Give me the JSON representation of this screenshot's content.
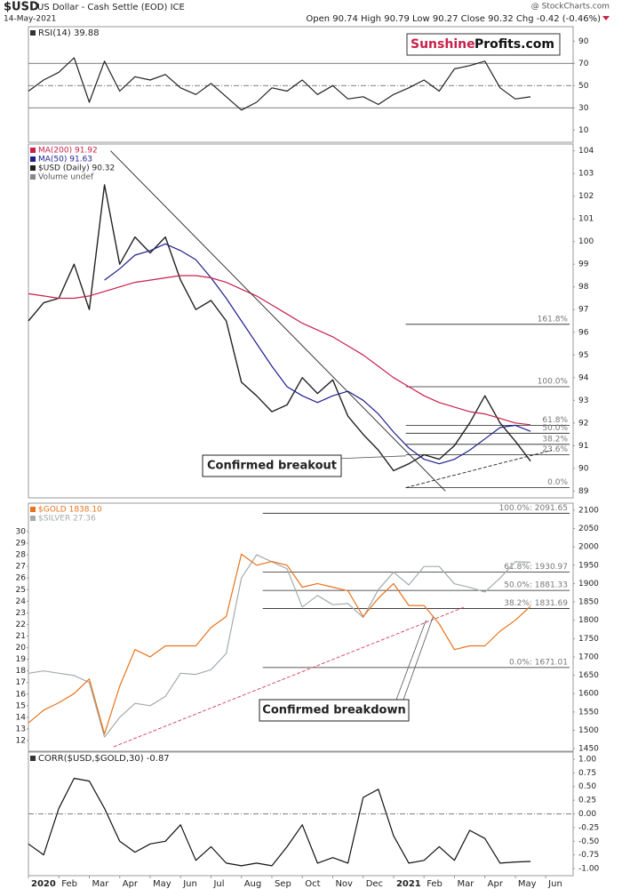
{
  "header": {
    "symbol": "$USD",
    "name": "US Dollar - Cash Settle (EOD) ICE",
    "date": "14-May-2021",
    "quote": "Open 90.74 High 90.79 Low 90.27 Close 90.32 Chg -0.42 (-0.46%)",
    "credit": "@ StockCharts.com"
  },
  "logo": {
    "part1": "Sunshine",
    "part2": "Profits.com"
  },
  "chart_data": [
    {
      "type": "line",
      "title": "RSI(14) 39.88",
      "xlim": [
        0,
        17.9
      ],
      "x": [
        0,
        0.5,
        1,
        1.5,
        2,
        2.5,
        3,
        3.5,
        4,
        4.5,
        5,
        5.5,
        6,
        6.5,
        7,
        7.5,
        8,
        8.5,
        9,
        9.5,
        10,
        10.5,
        11,
        11.5,
        12,
        12.5,
        13,
        13.5,
        14,
        14.5,
        15,
        15.5,
        16,
        16.5
      ],
      "ylim": [
        -1,
        103
      ],
      "yticks": [
        10,
        30,
        50,
        70,
        90
      ],
      "levels": [
        30,
        50,
        70
      ],
      "series": [
        {
          "color": "#222222",
          "values": [
            45,
            55,
            62,
            75,
            35,
            72,
            45,
            58,
            55,
            60,
            48,
            42,
            52,
            40,
            28,
            35,
            48,
            45,
            55,
            42,
            50,
            38,
            40,
            33,
            42,
            48,
            55,
            45,
            65,
            68,
            72,
            48,
            38,
            39.88
          ]
        }
      ]
    },
    {
      "type": "line",
      "xlim": [
        0,
        17.9
      ],
      "x": [
        0,
        0.5,
        1,
        1.5,
        2,
        2.5,
        3,
        3.5,
        4,
        4.5,
        5,
        5.5,
        6,
        6.5,
        7,
        7.5,
        8,
        8.5,
        9,
        9.5,
        10,
        10.5,
        11,
        11.5,
        12,
        12.5,
        13,
        13.5,
        14,
        14.5,
        15,
        15.5,
        16,
        16.5
      ],
      "ylim": [
        88.7,
        104.3
      ],
      "yticks": [
        89,
        90,
        91,
        92,
        93,
        94,
        95,
        96,
        97,
        98,
        99,
        100,
        101,
        102,
        103,
        104
      ],
      "legend_extra": "Volume undef",
      "series": [
        {
          "name": "$USD (Daily) 90.32",
          "color": "#222222",
          "values": [
            96.5,
            97.3,
            97.5,
            99.0,
            97.0,
            102.5,
            99.0,
            100.2,
            99.5,
            100.2,
            98.3,
            97.0,
            97.4,
            96.5,
            93.8,
            93.2,
            92.5,
            92.8,
            94.0,
            93.3,
            93.9,
            92.3,
            91.5,
            90.8,
            89.9,
            90.2,
            90.6,
            90.4,
            91.0,
            92.0,
            93.2,
            92.0,
            91.2,
            90.32
          ]
        },
        {
          "name": "MA(50) 91.63",
          "color": "#1f1f8f",
          "values": [
            null,
            null,
            null,
            null,
            null,
            98.3,
            98.8,
            99.4,
            99.6,
            99.9,
            99.6,
            99.2,
            98.4,
            97.5,
            96.5,
            95.5,
            94.5,
            93.6,
            93.2,
            92.9,
            93.2,
            93.4,
            93.0,
            92.4,
            91.6,
            90.9,
            90.4,
            90.2,
            90.4,
            90.8,
            91.3,
            91.8,
            91.9,
            91.63
          ]
        },
        {
          "name": "MA(200) 91.92",
          "color": "#c8204a",
          "values": [
            97.7,
            97.6,
            97.5,
            97.5,
            97.6,
            97.8,
            98.0,
            98.2,
            98.3,
            98.4,
            98.5,
            98.5,
            98.4,
            98.2,
            97.9,
            97.6,
            97.2,
            96.8,
            96.4,
            96.1,
            95.8,
            95.4,
            95.0,
            94.5,
            94.0,
            93.6,
            93.2,
            92.9,
            92.7,
            92.5,
            92.4,
            92.2,
            92.0,
            91.92
          ]
        }
      ],
      "fib_start": 12.4,
      "fib_levels": [
        {
          "label": "161.8%",
          "value": 96.35
        },
        {
          "label": "100.0%",
          "value": 93.6
        },
        {
          "label": "61.8%",
          "value": 91.9
        },
        {
          "label": "50.0%",
          "value": 91.55
        },
        {
          "label": "38.2%",
          "value": 91.06
        },
        {
          "label": "23.6%",
          "value": 90.6
        },
        {
          "label": "0.0%",
          "value": 89.15
        }
      ],
      "trendlines": [
        {
          "x": [
            2.7,
            13.7
          ],
          "y": [
            104.0,
            89.0
          ],
          "color": "#222222",
          "dash": false
        },
        {
          "x": [
            12.4,
            17.2
          ],
          "y": [
            89.15,
            90.8
          ],
          "color": "#222222",
          "dash": true
        }
      ],
      "annotation": {
        "text": "Confirmed breakout",
        "x": 12.4,
        "y": 90.55
      }
    },
    {
      "type": "line",
      "xlim": [
        0,
        17.9
      ],
      "x": [
        0,
        0.5,
        1,
        1.5,
        2,
        2.5,
        3,
        3.5,
        4,
        4.5,
        5,
        5.5,
        6,
        6.5,
        7,
        7.5,
        8,
        8.5,
        9,
        9.5,
        10,
        10.5,
        11,
        11.5,
        12,
        12.5,
        13,
        13.5,
        14,
        14.5,
        15,
        15.5,
        16,
        16.5
      ],
      "ylim": [
        11.08,
        32.45
      ],
      "yticks": [
        12,
        13,
        14,
        15,
        16,
        17,
        18,
        19,
        20,
        21,
        22,
        23,
        24,
        25,
        26,
        27,
        28,
        29,
        30
      ],
      "y_side": "left",
      "y2lim": [
        1443,
        2119
      ],
      "y2ticks": [
        1450,
        1500,
        1550,
        1600,
        1650,
        1700,
        1750,
        1800,
        1850,
        1900,
        1950,
        2000,
        2050,
        2100
      ],
      "series": [
        {
          "name": "$SILVER 27.36",
          "color": "#a3abae",
          "values": [
            17.8,
            18.0,
            17.8,
            17.6,
            17.0,
            12.3,
            14.0,
            15.2,
            15.0,
            15.8,
            17.8,
            17.7,
            18.1,
            19.5,
            26.0,
            28.0,
            27.4,
            26.8,
            23.5,
            24.5,
            23.7,
            23.8,
            22.6,
            25.0,
            26.5,
            25.4,
            27.0,
            27.0,
            25.5,
            25.2,
            24.8,
            26.0,
            27.4,
            27.36
          ]
        },
        {
          "name": "$GOLD 1838.10",
          "color": "#e8731a",
          "axis": "y2",
          "values": [
            1520,
            1555,
            1575,
            1600,
            1640,
            1490,
            1620,
            1720,
            1700,
            1730,
            1730,
            1730,
            1780,
            1810,
            1980,
            1950,
            1960,
            1950,
            1890,
            1900,
            1890,
            1880,
            1810,
            1860,
            1900,
            1840,
            1840,
            1790,
            1720,
            1730,
            1730,
            1770,
            1800,
            1838.1
          ]
        }
      ],
      "fib_start": 7.7,
      "fib_axis": "y2",
      "fib_levels": [
        {
          "label": "100.0%: 2091.65",
          "value": 2091.65
        },
        {
          "label": "61.8%: 1930.97",
          "value": 1930.97
        },
        {
          "label": "50.0%: 1881.33",
          "value": 1881.33
        },
        {
          "label": "38.2%: 1831.69",
          "value": 1831.69
        },
        {
          "label": "0.0%: 1671.01",
          "value": 1671.01
        }
      ],
      "trendlines": [
        {
          "x": [
            2.8,
            14.3
          ],
          "y": [
            1455,
            1835
          ],
          "color": "#d0405a",
          "dash": true,
          "axis": "y2"
        }
      ],
      "annotation": {
        "text": "Confirmed breakdown",
        "x": 13.3,
        "y": 1810,
        "axis": "y2"
      }
    },
    {
      "type": "line",
      "title": "CORR($USD,$GOLD,30) -0.87",
      "xlim": [
        0,
        17.9
      ],
      "x": [
        0,
        0.5,
        1,
        1.5,
        2,
        2.5,
        3,
        3.5,
        4,
        4.5,
        5,
        5.5,
        6,
        6.5,
        7,
        7.5,
        8,
        8.5,
        9,
        9.5,
        10,
        10.5,
        11,
        11.5,
        12,
        12.5,
        13,
        13.5,
        14,
        14.5,
        15,
        15.5,
        16,
        16.5
      ],
      "ylim": [
        -1.13,
        1.13
      ],
      "yticks": [
        {
          "value": 1,
          "label": "1.00"
        },
        {
          "value": 0.75,
          "label": "0.75"
        },
        {
          "value": 0.5,
          "label": "0.50"
        },
        {
          "value": 0.25,
          "label": "0.25"
        },
        {
          "value": 0,
          "label": "0.00"
        },
        {
          "value": -0.25,
          "label": "-0.25"
        },
        {
          "value": -0.5,
          "label": "-0.50"
        },
        {
          "value": -0.75,
          "label": "-0.75"
        },
        {
          "value": -1,
          "label": "-1.00"
        }
      ],
      "levels": [
        0
      ],
      "series": [
        {
          "color": "#111111",
          "values": [
            -0.55,
            -0.75,
            0.1,
            0.65,
            0.6,
            0.1,
            -0.5,
            -0.7,
            -0.55,
            -0.5,
            -0.2,
            -0.85,
            -0.6,
            -0.9,
            -0.95,
            -0.9,
            -0.95,
            -0.6,
            -0.2,
            -0.9,
            -0.8,
            -0.9,
            0.3,
            0.45,
            -0.4,
            -0.9,
            -0.85,
            -0.6,
            -0.85,
            -0.3,
            -0.45,
            -0.9,
            -0.88,
            -0.87
          ]
        }
      ],
      "xticks": [
        {
          "value": 0,
          "label": "2020"
        },
        {
          "value": 1,
          "label": "Feb"
        },
        {
          "value": 2,
          "label": "Mar"
        },
        {
          "value": 3,
          "label": "Apr"
        },
        {
          "value": 4,
          "label": "May"
        },
        {
          "value": 5,
          "label": "Jun"
        },
        {
          "value": 6,
          "label": "Jul"
        },
        {
          "value": 7,
          "label": "Aug"
        },
        {
          "value": 8,
          "label": "Sep"
        },
        {
          "value": 9,
          "label": "Oct"
        },
        {
          "value": 10,
          "label": "Nov"
        },
        {
          "value": 11,
          "label": "Dec"
        },
        {
          "value": 12,
          "label": "2021"
        },
        {
          "value": 13,
          "label": "Feb"
        },
        {
          "value": 14,
          "label": "Mar"
        },
        {
          "value": 15,
          "label": "Apr"
        },
        {
          "value": 16,
          "label": "May"
        },
        {
          "value": 17,
          "label": "Jun"
        }
      ]
    }
  ]
}
